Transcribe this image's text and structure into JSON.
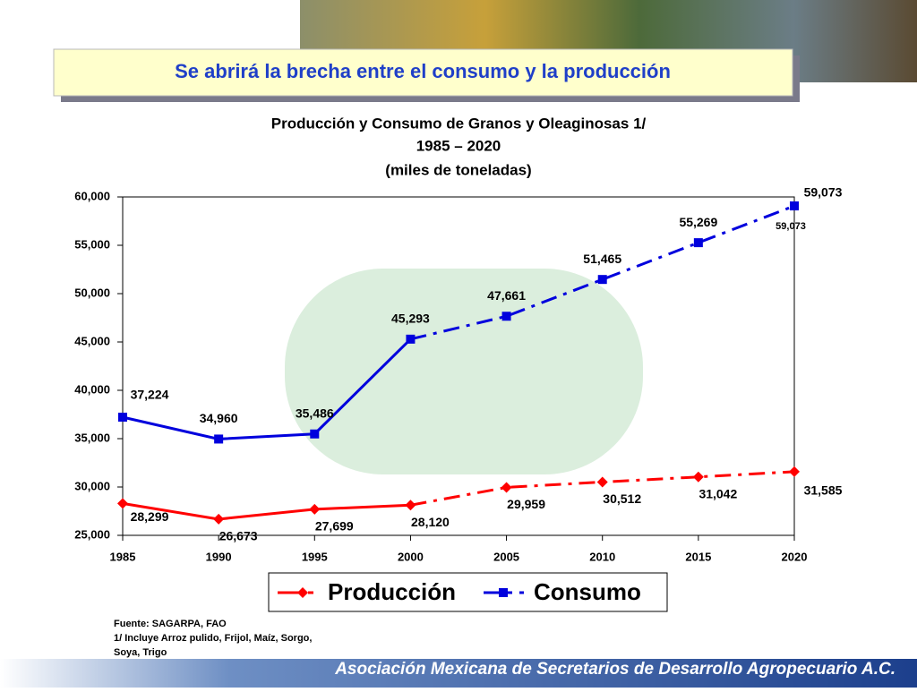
{
  "slide": {
    "heading": "Se abrirá la brecha entre el consumo y la producción",
    "source": [
      "Fuente: SAGARPA, FAO",
      "1/ Incluye Arroz pulido, Frijol, Maíz, Sorgo,",
      "Soya, Trigo"
    ],
    "footer": "Asociación Mexicana de Secretarios de Desarrollo Agropecuario A.C."
  },
  "chart_data": {
    "type": "line",
    "title": "Producción y Consumo de Granos y Oleaginosas 1/",
    "subtitle": [
      "1985 – 2020",
      "(miles de toneladas)"
    ],
    "categories": [
      "1985",
      "1990",
      "1995",
      "2000",
      "2005",
      "2010",
      "2015",
      "2020"
    ],
    "dashed_from": "2000",
    "series": [
      {
        "name": "Producción",
        "color": "#ff0000",
        "marker": "diamond",
        "values": [
          28299,
          26673,
          27699,
          28120,
          29959,
          30512,
          31042,
          31585
        ],
        "value_labels": [
          "28,299",
          "26,673",
          "27,699",
          "28,120",
          "29,959",
          "30,512",
          "31,042",
          "31,585"
        ]
      },
      {
        "name": "Consumo",
        "color": "#0000dd",
        "marker": "square",
        "values": [
          37224,
          34960,
          35486,
          45293,
          47661,
          51465,
          55269,
          59073
        ],
        "value_labels": [
          "37,224",
          "34,960",
          "35,486",
          "45,293",
          "47,661",
          "51,465",
          "55,269",
          "59,073"
        ]
      }
    ],
    "annotations": [
      "59,073"
    ],
    "ylim": [
      25000,
      60000
    ],
    "yticks": [
      {
        "value": 25000,
        "label": "25,000"
      },
      {
        "value": 30000,
        "label": "30,000"
      },
      {
        "value": 35000,
        "label": "35,000"
      },
      {
        "value": 40000,
        "label": "40,000"
      },
      {
        "value": 45000,
        "label": "45,000"
      },
      {
        "value": 50000,
        "label": "50,000"
      },
      {
        "value": 55000,
        "label": "55,000"
      },
      {
        "value": 60000,
        "label": "60,000"
      }
    ],
    "grid": false,
    "legend": "bottom"
  }
}
